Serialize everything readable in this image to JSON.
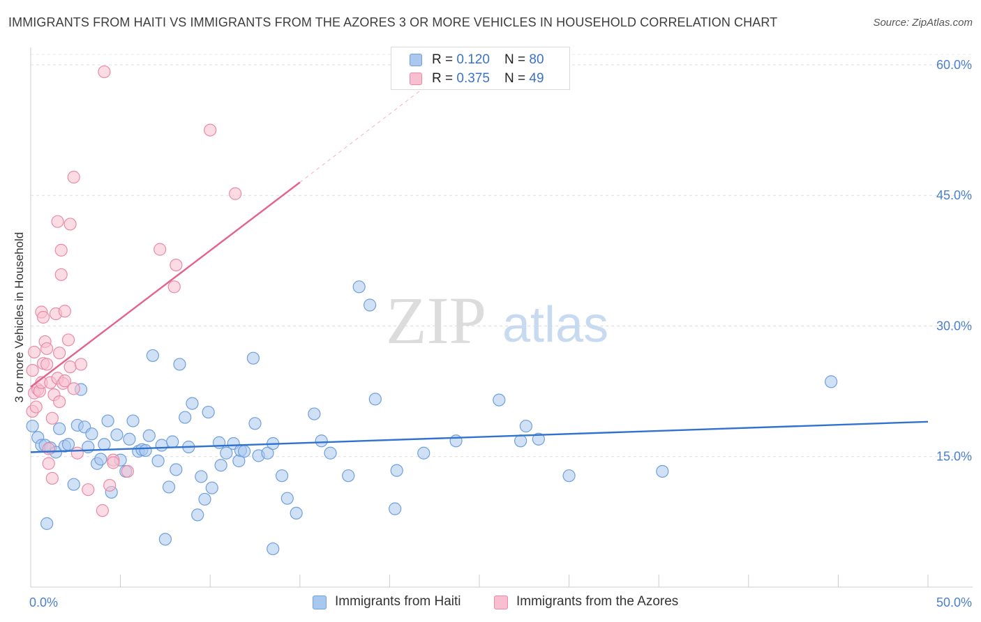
{
  "header": {
    "title": "IMMIGRANTS FROM HAITI VS IMMIGRANTS FROM THE AZORES 3 OR MORE VEHICLES IN HOUSEHOLD CORRELATION CHART",
    "source": "Source: ZipAtlas.com"
  },
  "watermark": {
    "zip": "ZIP",
    "atlas": "atlas"
  },
  "legend_top": {
    "rows": [
      {
        "r_label": "R = ",
        "r_value": "0.120",
        "n_label": "N = ",
        "n_value": "80"
      },
      {
        "r_label": "R = ",
        "r_value": "0.375",
        "n_label": "N = ",
        "n_value": "49"
      }
    ]
  },
  "legend_bottom": {
    "items": [
      {
        "label": "Immigrants from Haiti"
      },
      {
        "label": "Immigrants from the Azores"
      }
    ]
  },
  "chart_data": {
    "type": "scatter",
    "title": "IMMIGRANTS FROM HAITI VS IMMIGRANTS FROM THE AZORES 3 OR MORE VEHICLES IN HOUSEHOLD CORRELATION CHART",
    "xlabel": "",
    "ylabel": "3 or more Vehicles in Household",
    "xlim": [
      0,
      50
    ],
    "ylim": [
      0,
      62
    ],
    "x_tick_labels": [
      "0.0%",
      "50.0%"
    ],
    "y_ticks": [
      15,
      30,
      45,
      60
    ],
    "y_tick_labels": [
      "15.0%",
      "30.0%",
      "45.0%",
      "60.0%"
    ],
    "grid": true,
    "legend_position": "top-center",
    "series": [
      {
        "name": "Immigrants from Haiti",
        "color": "#a9c8ef",
        "edge_color": "#6f9fdc",
        "line_color": "#2f72cf",
        "r": 0.12,
        "n": 80,
        "trend": {
          "x": [
            0,
            50
          ],
          "y": [
            15.5,
            19.0
          ]
        },
        "points": [
          [
            0.1,
            18.5
          ],
          [
            0.4,
            17.2
          ],
          [
            0.6,
            16.3
          ],
          [
            0.8,
            16.3
          ],
          [
            0.9,
            7.3
          ],
          [
            1.1,
            16.0
          ],
          [
            1.4,
            15.5
          ],
          [
            1.6,
            18.2
          ],
          [
            1.9,
            16.2
          ],
          [
            2.1,
            16.4
          ],
          [
            2.4,
            11.8
          ],
          [
            2.6,
            18.6
          ],
          [
            2.8,
            22.7
          ],
          [
            3.0,
            18.4
          ],
          [
            3.2,
            16.1
          ],
          [
            3.4,
            17.6
          ],
          [
            3.7,
            14.2
          ],
          [
            3.9,
            14.7
          ],
          [
            4.1,
            16.4
          ],
          [
            4.3,
            19.1
          ],
          [
            4.5,
            10.9
          ],
          [
            4.8,
            17.5
          ],
          [
            5.0,
            14.6
          ],
          [
            5.3,
            13.3
          ],
          [
            5.5,
            17.0
          ],
          [
            5.7,
            19.1
          ],
          [
            6.0,
            15.6
          ],
          [
            6.2,
            15.8
          ],
          [
            6.4,
            15.7
          ],
          [
            6.6,
            17.4
          ],
          [
            6.8,
            26.6
          ],
          [
            7.1,
            14.5
          ],
          [
            7.3,
            16.3
          ],
          [
            7.5,
            5.5
          ],
          [
            7.7,
            11.5
          ],
          [
            7.9,
            16.7
          ],
          [
            8.1,
            13.5
          ],
          [
            8.3,
            25.6
          ],
          [
            8.6,
            19.5
          ],
          [
            8.8,
            16.1
          ],
          [
            9.0,
            21.1
          ],
          [
            9.3,
            8.3
          ],
          [
            9.5,
            12.7
          ],
          [
            9.7,
            10.1
          ],
          [
            9.9,
            20.1
          ],
          [
            10.1,
            11.4
          ],
          [
            10.5,
            16.6
          ],
          [
            10.6,
            14.0
          ],
          [
            10.9,
            15.4
          ],
          [
            11.3,
            16.5
          ],
          [
            11.6,
            14.5
          ],
          [
            11.7,
            15.7
          ],
          [
            11.9,
            15.6
          ],
          [
            12.4,
            26.3
          ],
          [
            12.5,
            18.8
          ],
          [
            12.7,
            15.1
          ],
          [
            13.2,
            15.4
          ],
          [
            13.5,
            16.5
          ],
          [
            13.5,
            4.4
          ],
          [
            14.0,
            12.8
          ],
          [
            14.3,
            10.2
          ],
          [
            14.8,
            8.5
          ],
          [
            15.8,
            19.9
          ],
          [
            16.2,
            16.8
          ],
          [
            16.7,
            15.4
          ],
          [
            17.7,
            12.8
          ],
          [
            18.3,
            34.5
          ],
          [
            18.9,
            32.4
          ],
          [
            19.2,
            21.6
          ],
          [
            20.3,
            9.0
          ],
          [
            20.4,
            13.4
          ],
          [
            21.9,
            15.4
          ],
          [
            23.7,
            16.8
          ],
          [
            26.1,
            21.5
          ],
          [
            27.3,
            16.8
          ],
          [
            27.6,
            18.5
          ],
          [
            28.3,
            17.0
          ],
          [
            30.0,
            12.8
          ],
          [
            35.2,
            13.3
          ],
          [
            44.6,
            23.6
          ]
        ]
      },
      {
        "name": "Immigrants from the Azores",
        "color": "#f7bfd0",
        "edge_color": "#ea8aa6",
        "line_color": "#e4628b",
        "r": 0.375,
        "n": 49,
        "trend": {
          "x": [
            0,
            15
          ],
          "y": [
            23.0,
            46.5
          ]
        },
        "trend_extension": {
          "x": [
            15,
            22
          ],
          "y": [
            46.5,
            57.5
          ]
        },
        "points": [
          [
            0.1,
            24.9
          ],
          [
            0.1,
            20.2
          ],
          [
            0.2,
            22.3
          ],
          [
            0.2,
            27.0
          ],
          [
            0.3,
            20.7
          ],
          [
            0.4,
            22.7
          ],
          [
            0.5,
            22.5
          ],
          [
            0.6,
            23.5
          ],
          [
            0.6,
            31.6
          ],
          [
            0.7,
            25.7
          ],
          [
            0.7,
            31.0
          ],
          [
            0.8,
            28.2
          ],
          [
            0.9,
            27.4
          ],
          [
            0.9,
            25.6
          ],
          [
            1.0,
            14.2
          ],
          [
            1.0,
            15.9
          ],
          [
            1.1,
            23.5
          ],
          [
            1.2,
            19.4
          ],
          [
            1.2,
            12.5
          ],
          [
            1.3,
            22.1
          ],
          [
            1.4,
            31.4
          ],
          [
            1.5,
            24.0
          ],
          [
            1.5,
            42.0
          ],
          [
            1.6,
            21.3
          ],
          [
            1.6,
            26.9
          ],
          [
            1.7,
            35.9
          ],
          [
            1.7,
            38.7
          ],
          [
            1.8,
            23.4
          ],
          [
            1.9,
            23.7
          ],
          [
            1.9,
            31.7
          ],
          [
            2.1,
            28.4
          ],
          [
            2.2,
            41.7
          ],
          [
            2.2,
            25.3
          ],
          [
            2.4,
            47.1
          ],
          [
            2.4,
            22.8
          ],
          [
            2.6,
            15.4
          ],
          [
            2.8,
            25.6
          ],
          [
            3.2,
            11.2
          ],
          [
            4.0,
            8.8
          ],
          [
            4.4,
            11.7
          ],
          [
            4.6,
            14.6
          ],
          [
            4.6,
            14.3
          ],
          [
            5.4,
            13.3
          ],
          [
            7.2,
            38.8
          ],
          [
            8.0,
            34.5
          ],
          [
            10.0,
            52.5
          ],
          [
            11.4,
            45.2
          ],
          [
            8.1,
            37.0
          ],
          [
            4.1,
            59.2
          ]
        ]
      }
    ]
  }
}
